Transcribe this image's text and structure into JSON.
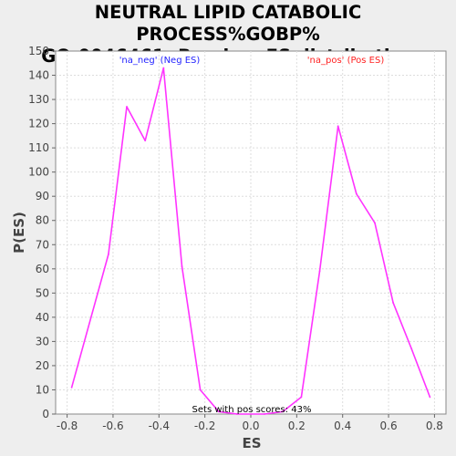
{
  "chart_data": {
    "type": "line",
    "title_line1": "NEUTRAL LIPID CATABOLIC PROCESS%GOBP%",
    "title_line2": "GO:0046461: Random ES distribution",
    "xlabel": "ES",
    "ylabel": "P(ES)",
    "xlim": [
      -0.85,
      0.85
    ],
    "ylim": [
      0,
      150
    ],
    "xticks": [
      -0.8,
      -0.6,
      -0.4,
      -0.2,
      0.0,
      0.2,
      0.4,
      0.6,
      0.8
    ],
    "xtick_labels": [
      "-0.8",
      "-0.6",
      "-0.4",
      "-0.2",
      "0.0",
      "0.2",
      "0.4",
      "0.6",
      "0.8"
    ],
    "yticks": [
      0,
      10,
      20,
      30,
      40,
      50,
      60,
      70,
      80,
      90,
      100,
      110,
      120,
      130,
      140,
      150
    ],
    "grid": true,
    "line_color": "#ff33ff",
    "series": [
      {
        "x": [
          -0.78,
          -0.62,
          -0.54,
          -0.46,
          -0.38,
          -0.3,
          -0.22,
          -0.14,
          -0.06,
          0.06,
          0.14,
          0.22,
          0.3,
          0.38,
          0.46,
          0.54,
          0.62,
          0.7,
          0.78
        ],
        "y": [
          11,
          66,
          127,
          113,
          143,
          61,
          10,
          1,
          0,
          0,
          1,
          7,
          59,
          119,
          91,
          79,
          46,
          27,
          7
        ]
      }
    ],
    "legend": [
      {
        "label": "'na_neg' (Neg ES)",
        "color": "#2222ff"
      },
      {
        "label": "'na_pos' (Pos ES)",
        "color": "#ff2222"
      }
    ],
    "annotation": "Sets with pos scores: 43%"
  }
}
